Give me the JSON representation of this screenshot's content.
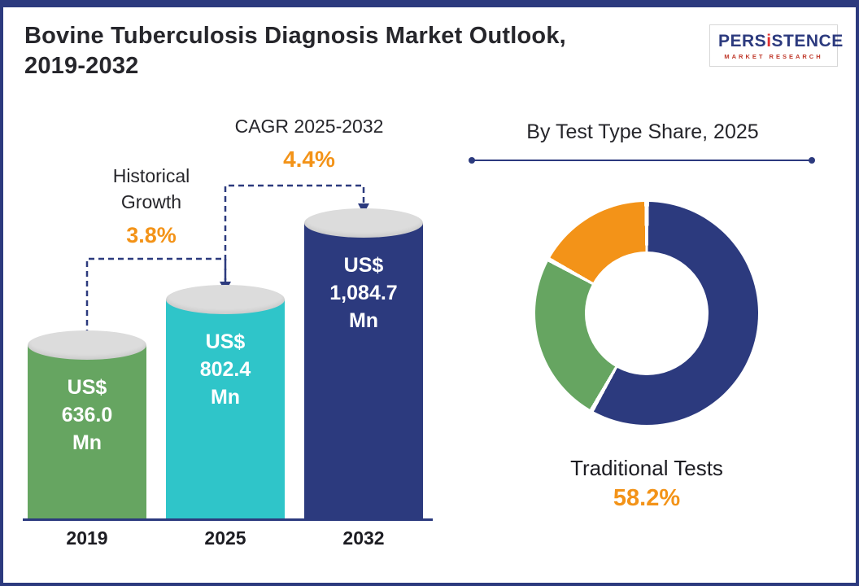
{
  "header": {
    "title": "Bovine Tuberculosis Diagnosis Market Outlook,\n2019-2032",
    "logo": {
      "brand_left": "PERS",
      "brand_i": "i",
      "brand_right": "STENCE",
      "tagline": "MARKET RESEARCH"
    }
  },
  "bar_chart": {
    "historical_label": "Historical\nGrowth",
    "historical_value": "3.8%",
    "cagr_label": "CAGR 2025-2032",
    "cagr_value": "4.4%",
    "bars": [
      {
        "year": "2019",
        "value": 636.0,
        "value_label": "US$\n636.0\nMn",
        "color": "#66a561"
      },
      {
        "year": "2025",
        "value": 802.4,
        "value_label": "US$\n802.4\nMn",
        "color": "#2fc5c9"
      },
      {
        "year": "2032",
        "value": 1084.7,
        "value_label": "US$\n1,084.7\nMn",
        "color": "#2c3a7e"
      }
    ]
  },
  "donut": {
    "title": "By Test Type Share, 2025",
    "callout_label": "Traditional Tests",
    "callout_value": "58.2%",
    "segments": [
      {
        "name": "Traditional Tests",
        "value": 58.2,
        "color": "#2c3a7e"
      },
      {
        "name": "Unlabeled segment (green)",
        "value": 24.8,
        "color": "#66a561"
      },
      {
        "name": "Unlabeled segment (orange)",
        "value": 17.0,
        "color": "#f39318"
      }
    ]
  },
  "chart_data": [
    {
      "type": "bar",
      "title": "Bovine Tuberculosis Diagnosis Market Outlook, 2019-2032",
      "categories": [
        "2019",
        "2025",
        "2032"
      ],
      "values": [
        636.0,
        802.4,
        1084.7
      ],
      "unit": "US$ Mn",
      "annotations": {
        "historical_growth_2019_2025": "3.8%",
        "cagr_2025_2032": "4.4%"
      },
      "layout": {
        "orientation": "vertical",
        "grid": false,
        "value_labels": "inside bars"
      }
    },
    {
      "type": "pie",
      "title": "By Test Type Share, 2025",
      "labels": [
        "Traditional Tests",
        "Unlabeled segment (green)",
        "Unlabeled segment (orange)"
      ],
      "values": [
        58.2,
        24.8,
        17.0
      ],
      "note": "Only the Traditional Tests share (58.2%) is labeled on screen; the green and orange segment values are estimated from arc sizes.",
      "layout": {
        "donut": true,
        "start_angle": "12 o'clock",
        "direction": "clockwise",
        "legend": "none"
      }
    }
  ]
}
